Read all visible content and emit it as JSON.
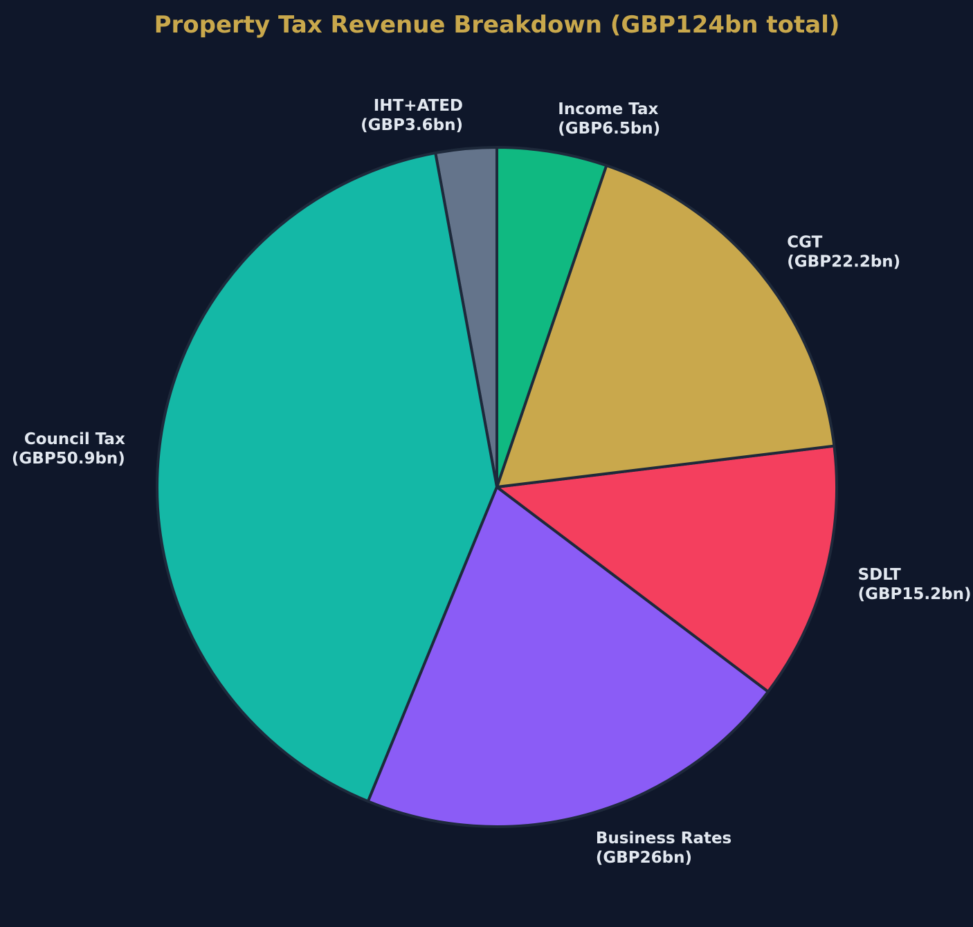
{
  "chart_data": {
    "type": "pie",
    "title": "Property Tax Revenue Breakdown (GBP124bn total)",
    "unit": "GBP bn",
    "start_angle_deg": 90,
    "direction": "counterclockwise",
    "slices": [
      {
        "name": "IHT+ATED",
        "value": 3.6,
        "label": "IHT+ATED\n(GBP3.6bn)",
        "color": "#64748b"
      },
      {
        "name": "Council Tax",
        "value": 50.9,
        "label": "Council Tax\n(GBP50.9bn)",
        "color": "#14b8a6"
      },
      {
        "name": "Business Rates",
        "value": 26,
        "label": "Business Rates\n(GBP26bn)",
        "color": "#8b5cf6"
      },
      {
        "name": "SDLT",
        "value": 15.2,
        "label": "SDLT\n(GBP15.2bn)",
        "color": "#f43f5e"
      },
      {
        "name": "CGT",
        "value": 22.2,
        "label": "CGT\n(GBP22.2bn)",
        "color": "#c9a84c"
      },
      {
        "name": "Income Tax",
        "value": 6.5,
        "label": "Income Tax\n(GBP6.5bn)",
        "color": "#10b981"
      }
    ]
  },
  "style": {
    "background": "#0f172a",
    "title_color": "#c9a84c",
    "label_color": "#e2e8f0",
    "edge_color": "#1e293b"
  }
}
